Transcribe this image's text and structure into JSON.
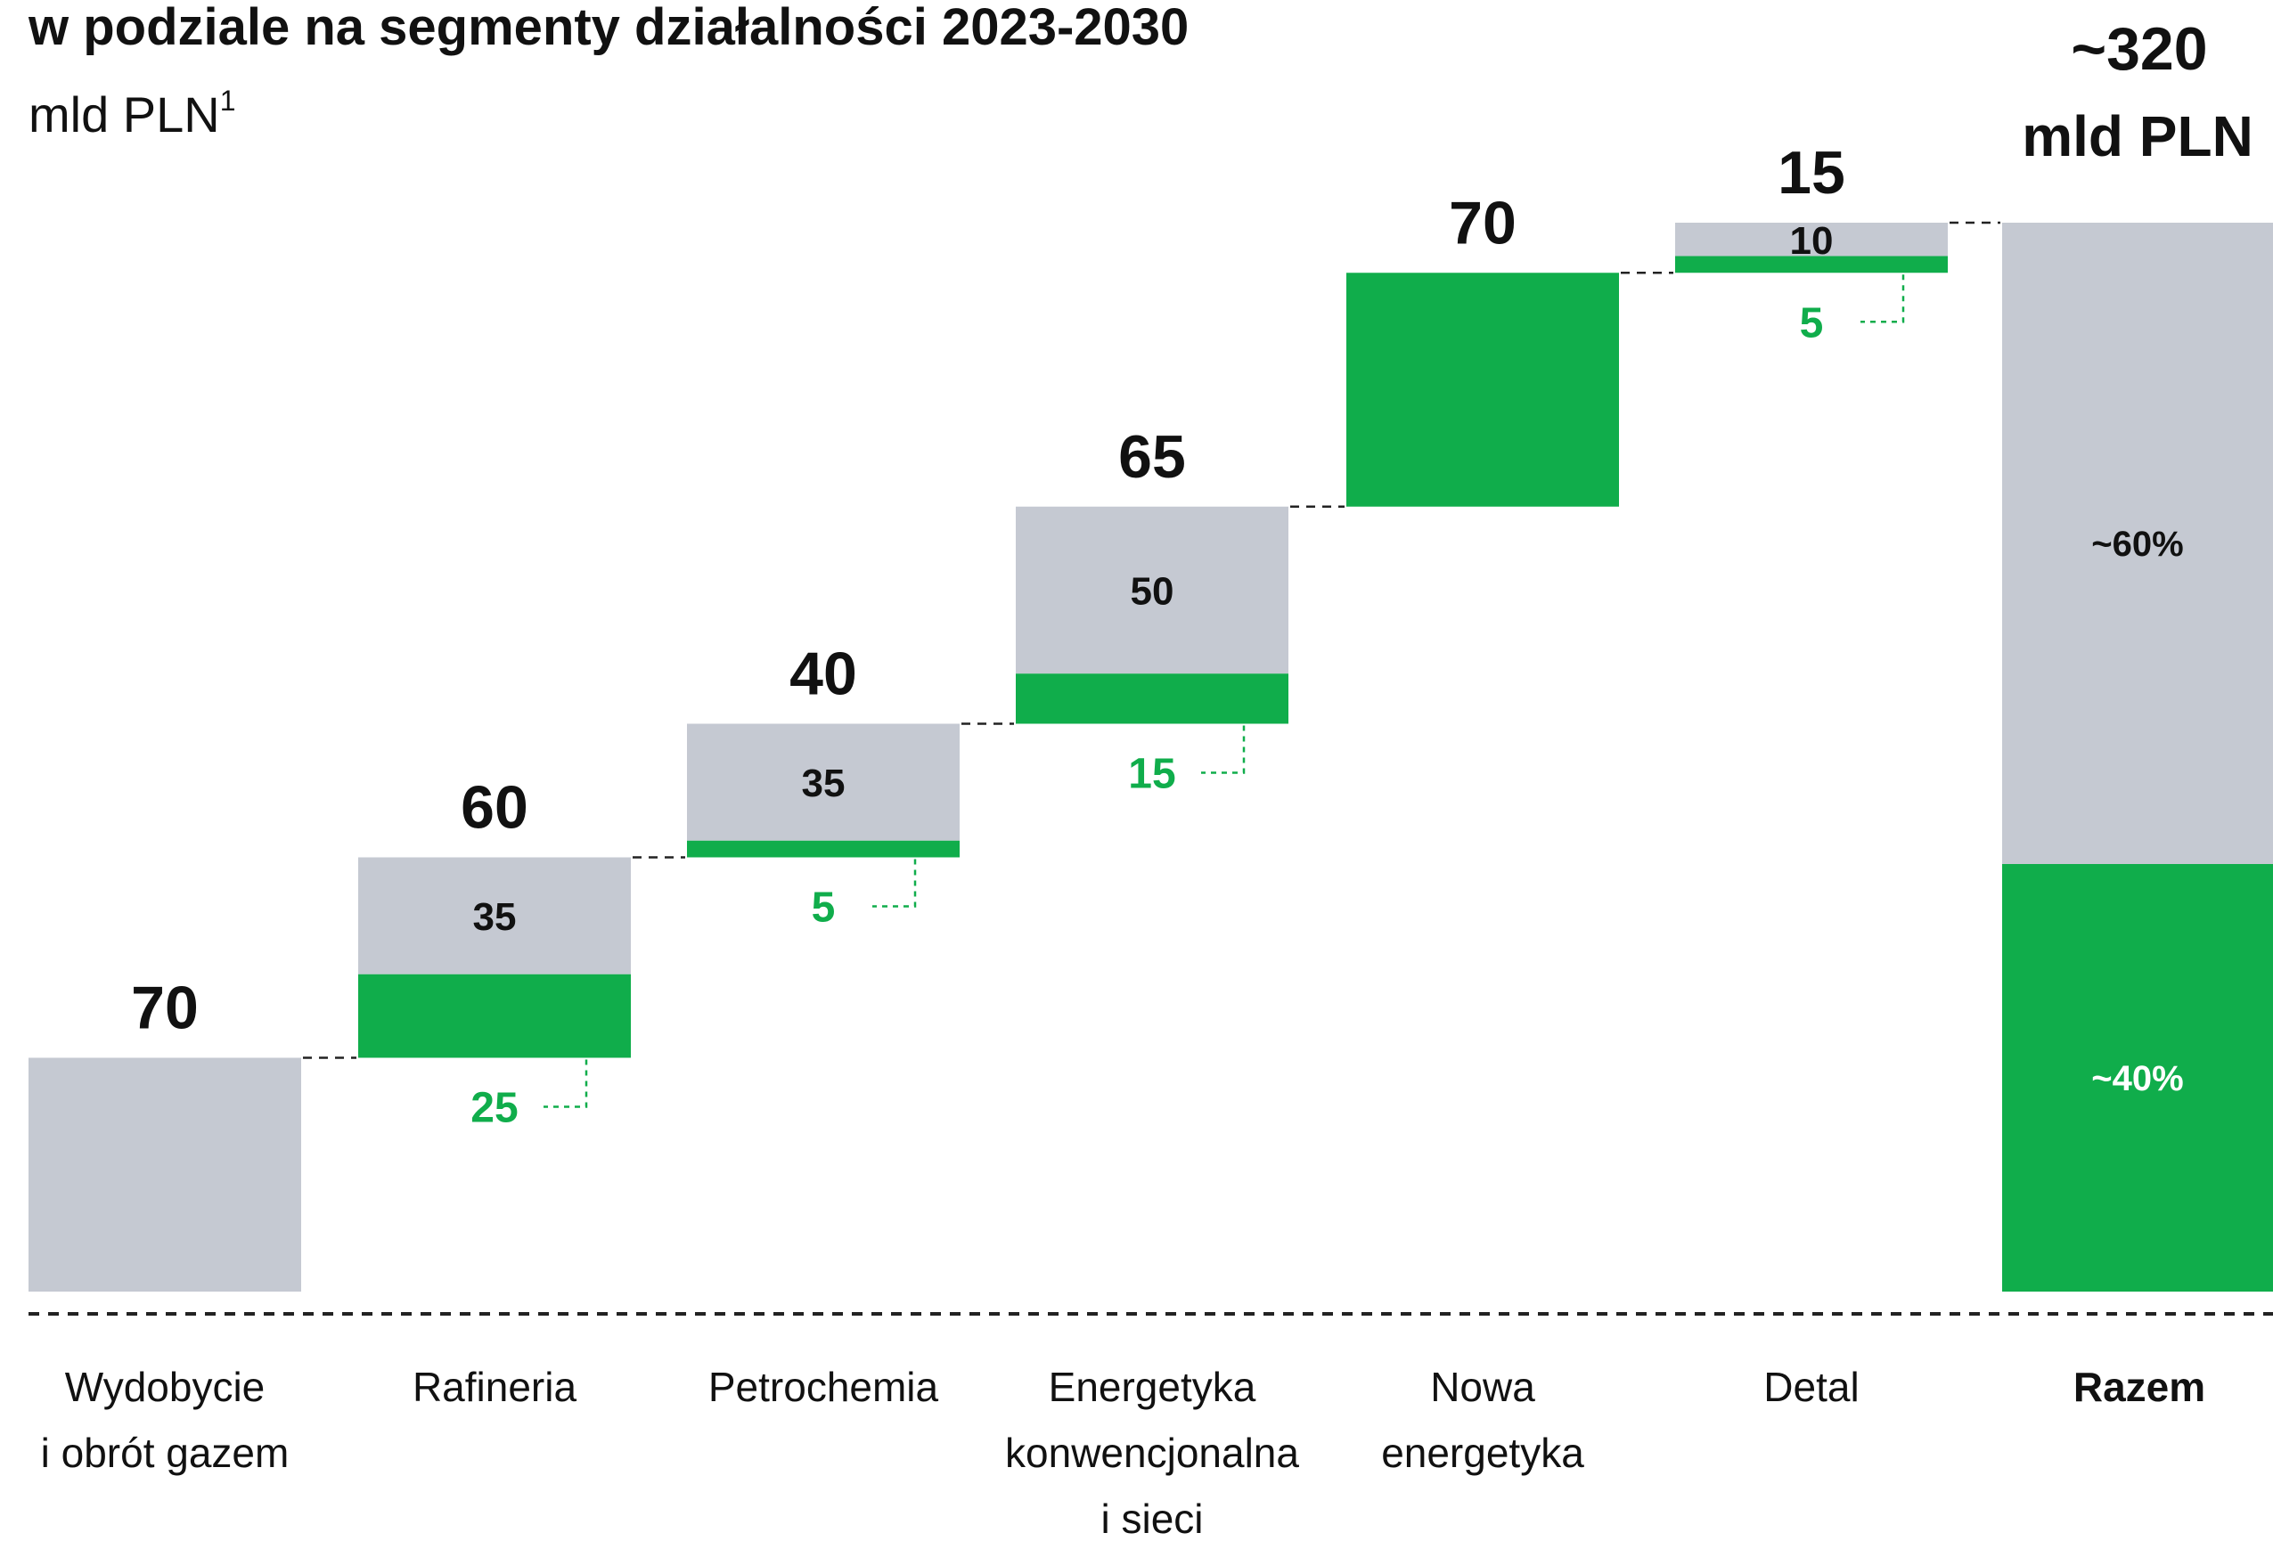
{
  "title": "w podziale na segmenty działalności 2023-2030",
  "unit": "mld PLN",
  "unit_footnote": "1",
  "colors": {
    "grey": "#c5c9d2",
    "green": "#10ad4b",
    "text": "#111111",
    "green_text": "#10ad4b",
    "share_dark_text": "#111111",
    "share_light_text": "#ffffff"
  },
  "chart_data": {
    "type": "bar",
    "subtype": "waterfall",
    "value_unit": "mld PLN",
    "categories": [
      [
        "Wydobycie",
        "i obrót gazem"
      ],
      [
        "Rafineria"
      ],
      [
        "Petrochemia"
      ],
      [
        "Energetyka",
        "konwencjonalna",
        "i sieci"
      ],
      [
        "Nowa",
        "energetyka"
      ],
      [
        "Detal"
      ]
    ],
    "totals": [
      70,
      60,
      40,
      65,
      70,
      15
    ],
    "series": [
      {
        "values": [
          70,
          35,
          35,
          50,
          0,
          10
        ],
        "color": "#c5c9d2"
      },
      {
        "values": [
          0,
          25,
          5,
          15,
          70,
          5
        ],
        "color": "#10ad4b"
      }
    ],
    "inner_labels": [
      "",
      "35",
      "35",
      "50",
      "",
      "10"
    ],
    "green_callouts": [
      "",
      "25",
      "5",
      "15",
      "",
      "5"
    ],
    "total_bar": {
      "category": "Razem",
      "label_line1": "~320",
      "label_line2": "mld PLN",
      "value": 320,
      "shares": [
        {
          "label": "~60%",
          "percent": 60,
          "color": "#c5c9d2"
        },
        {
          "label": "~40%",
          "percent": 40,
          "color": "#10ad4b"
        }
      ]
    },
    "connectors": "dashed",
    "baseline": "dashed",
    "legend": "none",
    "grid": false
  }
}
